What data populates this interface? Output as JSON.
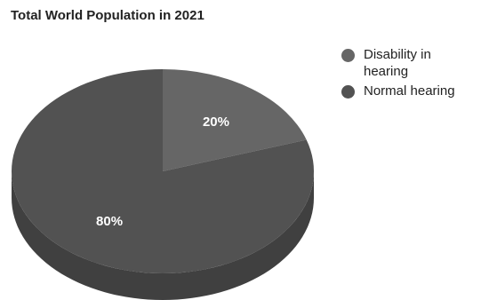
{
  "chart_data": {
    "type": "pie",
    "title": "Total World Population in 2021",
    "three_d": true,
    "legend_position": "right",
    "slices": [
      {
        "label": "Disability in hearing",
        "value": 20,
        "display": "20%",
        "color": "#666666",
        "side_color": "#555555"
      },
      {
        "label": "Normal hearing",
        "value": 80,
        "display": "80%",
        "color": "#525252",
        "side_color": "#404040"
      }
    ]
  }
}
